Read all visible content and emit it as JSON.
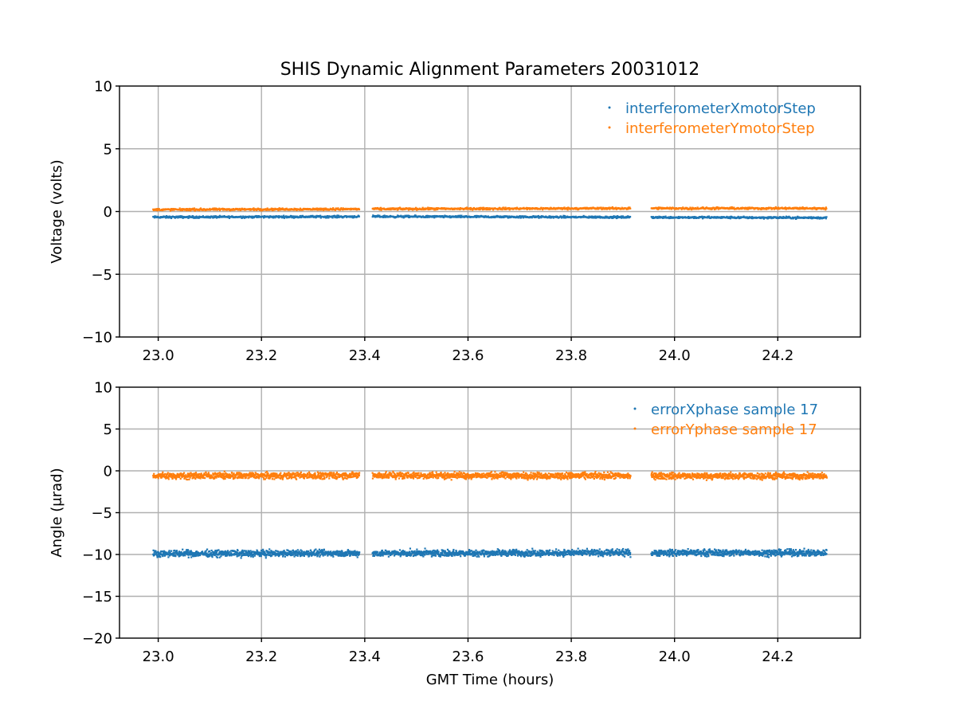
{
  "chart_data": [
    {
      "type": "scatter",
      "title": "SHIS Dynamic Alignment Parameters 20031012",
      "xlabel": "",
      "ylabel": "Voltage (volts)",
      "xlim": [
        22.925,
        24.36
      ],
      "ylim": [
        -10,
        10
      ],
      "xticks": [
        23.0,
        23.2,
        23.4,
        23.6,
        23.8,
        24.0,
        24.2
      ],
      "xtick_labels": [
        "23.0",
        "23.2",
        "23.4",
        "23.6",
        "23.8",
        "24.0",
        "24.2"
      ],
      "yticks": [
        10,
        5,
        0,
        -5,
        -10
      ],
      "ytick_labels": [
        "10",
        "5",
        "0",
        "−5",
        "−10"
      ],
      "grid": true,
      "legend_placement": "top-right",
      "series": [
        {
          "name": "interferometerXmotorStep",
          "color": "#1f77b4",
          "segments": [
            [
              22.99,
              23.39
            ],
            [
              23.415,
              23.915
            ],
            [
              23.955,
              24.295
            ]
          ],
          "values": [
            -0.45,
            -0.4,
            -0.45,
            -0.5
          ]
        },
        {
          "name": "interferometerYmotorStep",
          "color": "#ff7f0e",
          "segments": [
            [
              22.99,
              23.39
            ],
            [
              23.415,
              23.915
            ],
            [
              23.955,
              24.295
            ]
          ],
          "values": [
            0.15,
            0.2,
            0.25,
            0.25
          ]
        }
      ]
    },
    {
      "type": "scatter",
      "title": "",
      "xlabel": "GMT Time (hours)",
      "ylabel": "Angle (μrad)",
      "xlim": [
        22.925,
        24.36
      ],
      "ylim": [
        -20,
        10
      ],
      "xticks": [
        23.0,
        23.2,
        23.4,
        23.6,
        23.8,
        24.0,
        24.2
      ],
      "xtick_labels": [
        "23.0",
        "23.2",
        "23.4",
        "23.6",
        "23.8",
        "24.0",
        "24.2"
      ],
      "yticks": [
        10,
        5,
        0,
        -5,
        -10,
        -15,
        -20
      ],
      "ytick_labels": [
        "10",
        "5",
        "0",
        "−5",
        "−10",
        "−15",
        "−20"
      ],
      "grid": true,
      "legend_placement": "top-right",
      "series": [
        {
          "name": "errorXphase sample 17",
          "color": "#1f77b4",
          "segments": [
            [
              22.99,
              23.39
            ],
            [
              23.415,
              23.915
            ],
            [
              23.955,
              24.295
            ]
          ],
          "values": [
            -9.9,
            -9.85,
            -9.8,
            -9.8
          ]
        },
        {
          "name": "errorYphase sample 17",
          "color": "#ff7f0e",
          "segments": [
            [
              22.99,
              23.39
            ],
            [
              23.415,
              23.915
            ],
            [
              23.955,
              24.295
            ]
          ],
          "values": [
            -0.6,
            -0.55,
            -0.6,
            -0.65
          ]
        }
      ]
    }
  ]
}
